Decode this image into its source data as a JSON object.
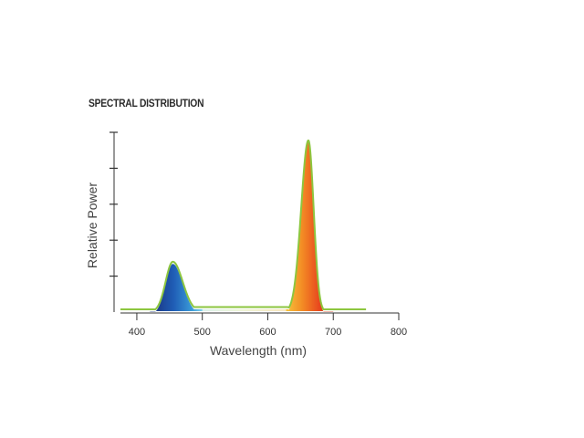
{
  "chart_data": {
    "type": "area",
    "title": "SPECTRAL DISTRIBUTION",
    "xlabel": "Wavelength (nm)",
    "ylabel": "Relative Power",
    "xlim": [
      375,
      800
    ],
    "ylim": [
      0,
      1
    ],
    "x_ticks": [
      400,
      500,
      600,
      700,
      800
    ],
    "y_tick_count": 5,
    "y_tick_labels": false,
    "grid": false,
    "series": [
      {
        "peaks": [
          {
            "center": 455,
            "height": 0.28,
            "width_left": 11,
            "width_right": 15
          },
          {
            "center": 662,
            "height": 0.955,
            "width_left": 11,
            "width_right": 8
          }
        ],
        "baseline": 0.015,
        "plateau": {
          "from": 475,
          "to": 640,
          "level": 0.028
        },
        "x_range": [
          375,
          750
        ],
        "outline_color": "#8dc63f"
      }
    ],
    "colors": {
      "blue_dark": "#1a3a8c",
      "blue_light": "#4ab3e0",
      "orange": "#f6a623",
      "red": "#e8481e",
      "red_dark": "#c9301a",
      "outline": "#8dc63f",
      "axis": "#333333"
    }
  }
}
